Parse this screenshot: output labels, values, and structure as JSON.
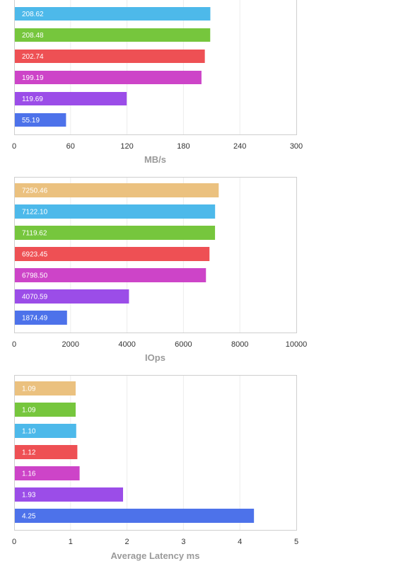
{
  "chart_data": [
    {
      "type": "bar",
      "orientation": "horizontal",
      "xlabel": "MB/s",
      "xlim": [
        0,
        300
      ],
      "xticks": [
        "0",
        "60",
        "120",
        "180",
        "240",
        "300"
      ],
      "grid": true,
      "bars": [
        {
          "value": 208.62,
          "label": "208.62",
          "color": "#4db9ea"
        },
        {
          "value": 208.48,
          "label": "208.48",
          "color": "#76c63d"
        },
        {
          "value": 202.74,
          "label": "202.74",
          "color": "#ee5054"
        },
        {
          "value": 199.19,
          "label": "199.19",
          "color": "#cd44c8"
        },
        {
          "value": 119.69,
          "label": "119.69",
          "color": "#9b4de8"
        },
        {
          "value": 55.19,
          "label": "55.19",
          "color": "#4d72ea"
        }
      ]
    },
    {
      "type": "bar",
      "orientation": "horizontal",
      "xlabel": "IOps",
      "xlim": [
        0,
        10000
      ],
      "xticks": [
        "0",
        "2000",
        "4000",
        "6000",
        "8000",
        "10000"
      ],
      "grid": true,
      "bars": [
        {
          "value": 7250.46,
          "label": "7250.46",
          "color": "#ebc17f"
        },
        {
          "value": 7122.1,
          "label": "7122.10",
          "color": "#4db9ea"
        },
        {
          "value": 7119.62,
          "label": "7119.62",
          "color": "#76c63d"
        },
        {
          "value": 6923.45,
          "label": "6923.45",
          "color": "#ee5054"
        },
        {
          "value": 6798.5,
          "label": "6798.50",
          "color": "#cd44c8"
        },
        {
          "value": 4070.59,
          "label": "4070.59",
          "color": "#9b4de8"
        },
        {
          "value": 1874.49,
          "label": "1874.49",
          "color": "#4d72ea"
        }
      ]
    },
    {
      "type": "bar",
      "orientation": "horizontal",
      "xlabel": "Average Latency ms",
      "xlim": [
        0,
        5
      ],
      "xticks": [
        "0",
        "1",
        "2",
        "3",
        "4",
        "5"
      ],
      "grid": true,
      "bars": [
        {
          "value": 1.09,
          "label": "1.09",
          "color": "#ebc17f"
        },
        {
          "value": 1.09,
          "label": "1.09",
          "color": "#76c63d"
        },
        {
          "value": 1.1,
          "label": "1.10",
          "color": "#4db9ea"
        },
        {
          "value": 1.12,
          "label": "1.12",
          "color": "#ee5054"
        },
        {
          "value": 1.16,
          "label": "1.16",
          "color": "#cd44c8"
        },
        {
          "value": 1.93,
          "label": "1.93",
          "color": "#9b4de8"
        },
        {
          "value": 4.25,
          "label": "4.25",
          "color": "#4d72ea"
        }
      ]
    }
  ]
}
